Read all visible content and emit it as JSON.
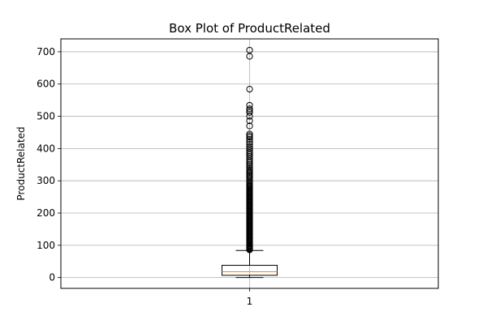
{
  "chart_data": {
    "type": "box",
    "title": "Box Plot of ProductRelated",
    "xlabel": "",
    "ylabel": "ProductRelated",
    "categories": [
      "1"
    ],
    "ylim": [
      -33.5,
      740
    ],
    "yticks": [
      0,
      100,
      200,
      300,
      400,
      500,
      600,
      700
    ],
    "grid": true,
    "boxes": [
      {
        "category": "1",
        "whisker_low": 0,
        "q1": 7,
        "median": 18,
        "q3": 38,
        "whisker_high": 84,
        "outliers": [
          86,
          88,
          90,
          92,
          94,
          96,
          98,
          100,
          103,
          106,
          109,
          112,
          115,
          118,
          121,
          124,
          127,
          130,
          133,
          136,
          139,
          142,
          145,
          148,
          151,
          154,
          157,
          160,
          163,
          166,
          169,
          172,
          175,
          178,
          181,
          184,
          187,
          190,
          193,
          196,
          199,
          202,
          205,
          208,
          211,
          214,
          217,
          220,
          223,
          226,
          229,
          232,
          235,
          238,
          241,
          244,
          247,
          250,
          253,
          256,
          259,
          262,
          265,
          268,
          271,
          274,
          277,
          280,
          283,
          286,
          290,
          295,
          300,
          305,
          310,
          314,
          318,
          322,
          326,
          330,
          335,
          340,
          345,
          350,
          356,
          362,
          368,
          375,
          381,
          387,
          393,
          400,
          406,
          413,
          420,
          428,
          435,
          440,
          445,
          470,
          486,
          500,
          512,
          518,
          523,
          534,
          584,
          686,
          705
        ]
      }
    ],
    "colors": {
      "box": "#000000",
      "median": "#ff7f0e",
      "grid": "#b0b0b0",
      "outlier_edge": "#000000"
    }
  }
}
